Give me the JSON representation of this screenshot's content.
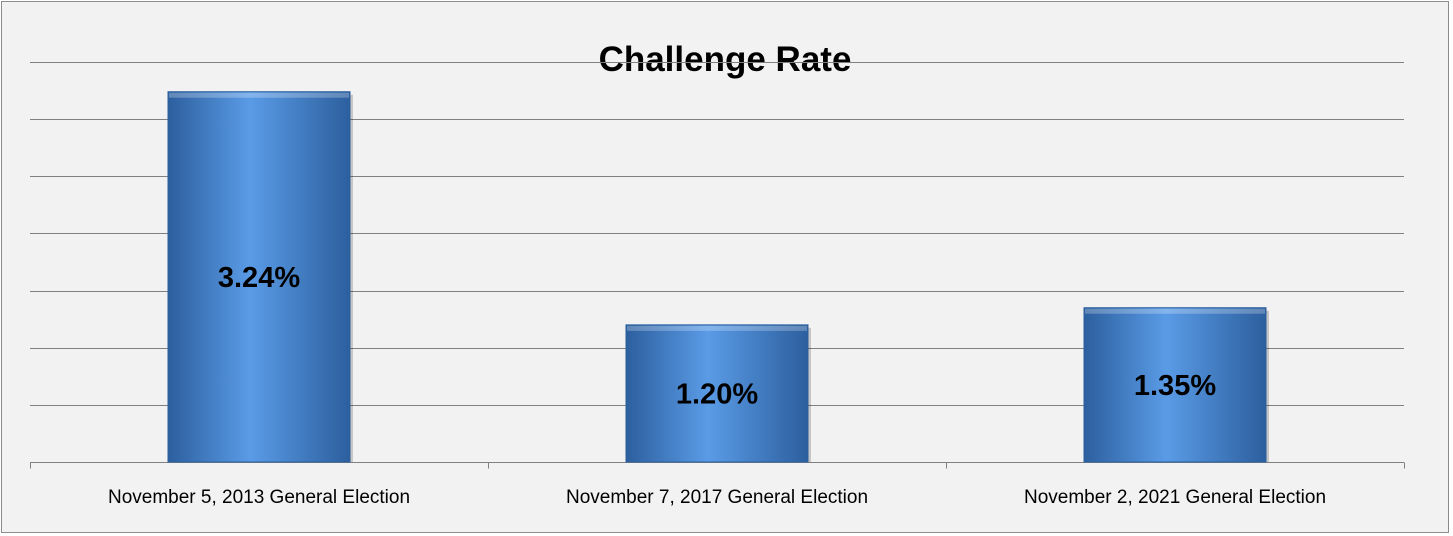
{
  "chart_data": {
    "type": "bar",
    "title": "Challenge Rate",
    "xlabel": "",
    "ylabel": "",
    "categories": [
      "November 5, 2013 General Election",
      "November 7, 2017 General Election",
      "November 2, 2021 General Election"
    ],
    "values": [
      3.24,
      1.2,
      1.35
    ],
    "value_labels": [
      "3.24%",
      "1.20%",
      "1.35%"
    ],
    "ylim": [
      0,
      3.5
    ],
    "gridlines": [
      0.5,
      1.0,
      1.5,
      2.0,
      2.5,
      3.0,
      3.5
    ],
    "grid": true,
    "legend": "none",
    "colors": {
      "bar": "#3f7fcf",
      "bar_light": "#5a9be6",
      "bar_dark": "#2c5f9e",
      "gridline": "#808080",
      "background": "#f2f2f2",
      "frame_border": "#8c8c8c"
    }
  }
}
